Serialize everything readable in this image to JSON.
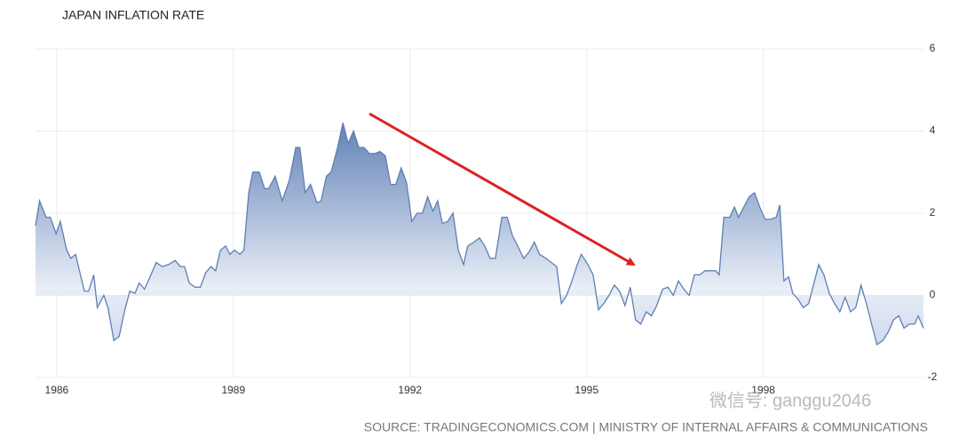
{
  "chart_data": {
    "type": "area",
    "title": "JAPAN INFLATION RATE",
    "source": "SOURCE: TRADINGECONOMICS.COM | MINISTRY OF INTERNAL AFFAIRS & COMMUNICATIONS",
    "watermark": "微信号: ganggu2046",
    "color": "#5f7fb2",
    "grid": true,
    "xlim": [
      1985.64,
      2000.72
    ],
    "xticks": [
      1986,
      1989,
      1992,
      1995,
      1998
    ],
    "ylim": [
      -2,
      6
    ],
    "yticks": [
      -2,
      0,
      2,
      4,
      6
    ],
    "x": [
      1985.64,
      1985.71,
      1985.82,
      1985.89,
      1985.99,
      1986.06,
      1986.17,
      1986.24,
      1986.32,
      1986.47,
      1986.54,
      1986.63,
      1986.69,
      1986.8,
      1986.87,
      1986.97,
      1987.06,
      1987.15,
      1987.24,
      1987.33,
      1987.4,
      1987.49,
      1987.6,
      1987.69,
      1987.79,
      1987.9,
      1988.01,
      1988.1,
      1988.17,
      1988.25,
      1988.35,
      1988.44,
      1988.53,
      1988.62,
      1988.7,
      1988.78,
      1988.87,
      1988.94,
      1989.02,
      1989.11,
      1989.18,
      1989.26,
      1989.33,
      1989.44,
      1989.53,
      1989.6,
      1989.71,
      1989.83,
      1989.95,
      1990.06,
      1990.13,
      1990.22,
      1990.31,
      1990.42,
      1990.49,
      1990.58,
      1990.66,
      1990.77,
      1990.86,
      1990.95,
      1991.04,
      1991.13,
      1991.22,
      1991.31,
      1991.4,
      1991.49,
      1991.58,
      1991.67,
      1991.76,
      1991.85,
      1991.94,
      1992.03,
      1992.12,
      1992.21,
      1992.3,
      1992.39,
      1992.47,
      1992.55,
      1992.64,
      1992.73,
      1992.82,
      1992.91,
      1992.98,
      1993.09,
      1993.18,
      1993.27,
      1993.36,
      1993.45,
      1993.56,
      1993.65,
      1993.74,
      1993.83,
      1993.93,
      1994.02,
      1994.11,
      1994.2,
      1994.31,
      1994.4,
      1994.49,
      1994.57,
      1994.66,
      1994.75,
      1994.84,
      1994.91,
      1995.02,
      1995.11,
      1995.2,
      1995.29,
      1995.38,
      1995.47,
      1995.56,
      1995.65,
      1995.74,
      1995.83,
      1995.92,
      1996.01,
      1996.1,
      1996.19,
      1996.29,
      1996.38,
      1996.47,
      1996.56,
      1996.65,
      1996.74,
      1996.83,
      1996.92,
      1997.01,
      1997.1,
      1997.19,
      1997.25,
      1997.33,
      1997.43,
      1997.51,
      1997.58,
      1997.67,
      1997.76,
      1997.85,
      1997.94,
      1998.03,
      1998.13,
      1998.22,
      1998.28,
      1998.35,
      1998.43,
      1998.5,
      1998.59,
      1998.68,
      1998.77,
      1998.86,
      1998.94,
      1999.03,
      1999.12,
      1999.21,
      1999.3,
      1999.39,
      1999.48,
      1999.57,
      1999.66,
      1999.75,
      1999.84,
      1999.93,
      2000.03,
      2000.12,
      2000.21,
      2000.3,
      2000.39,
      2000.48,
      2000.57,
      2000.63,
      2000.72
    ],
    "values": [
      1.7,
      2.3,
      1.9,
      1.9,
      1.5,
      1.8,
      1.1,
      0.9,
      1.0,
      0.1,
      0.1,
      0.5,
      -0.3,
      0,
      -0.3,
      -1.1,
      -1.0,
      -0.4,
      0.1,
      0.05,
      0.3,
      0.15,
      0.5,
      0.8,
      0.7,
      0.75,
      0.85,
      0.7,
      0.7,
      0.3,
      0.2,
      0.2,
      0.55,
      0.7,
      0.6,
      1.1,
      1.2,
      1.0,
      1.1,
      1.0,
      1.1,
      2.5,
      3.0,
      3.0,
      2.6,
      2.6,
      2.9,
      2.3,
      2.8,
      3.6,
      3.6,
      2.5,
      2.7,
      2.25,
      2.3,
      2.9,
      3.0,
      3.6,
      4.2,
      3.7,
      4.0,
      3.6,
      3.6,
      3.45,
      3.45,
      3.5,
      3.4,
      2.7,
      2.7,
      3.1,
      2.75,
      1.8,
      2.0,
      2.0,
      2.4,
      2.05,
      2.3,
      1.75,
      1.8,
      2.0,
      1.1,
      0.75,
      1.2,
      1.3,
      1.4,
      1.2,
      0.9,
      0.9,
      1.9,
      1.9,
      1.45,
      1.2,
      0.9,
      1.05,
      1.3,
      1.0,
      0.9,
      0.8,
      0.7,
      -0.2,
      0,
      0.35,
      0.75,
      1.0,
      0.75,
      0.5,
      -0.35,
      -0.2,
      0,
      0.25,
      0.1,
      -0.25,
      0.2,
      -0.6,
      -0.7,
      -0.4,
      -0.5,
      -0.25,
      0.15,
      0.2,
      0,
      0.35,
      0.15,
      0,
      0.5,
      0.5,
      0.6,
      0.6,
      0.6,
      0.5,
      1.9,
      1.9,
      2.15,
      1.9,
      2.15,
      2.4,
      2.5,
      2.15,
      1.85,
      1.85,
      1.9,
      2.2,
      0.35,
      0.45,
      0.05,
      -0.1,
      -0.3,
      -0.2,
      0.3,
      0.75,
      0.5,
      0.05,
      -0.2,
      -0.4,
      -0.05,
      -0.4,
      -0.3,
      0.25,
      -0.2,
      -0.7,
      -1.2,
      -1.1,
      -0.9,
      -0.6,
      -0.5,
      -0.8,
      -0.7,
      -0.7,
      -0.5,
      -0.8
    ]
  }
}
